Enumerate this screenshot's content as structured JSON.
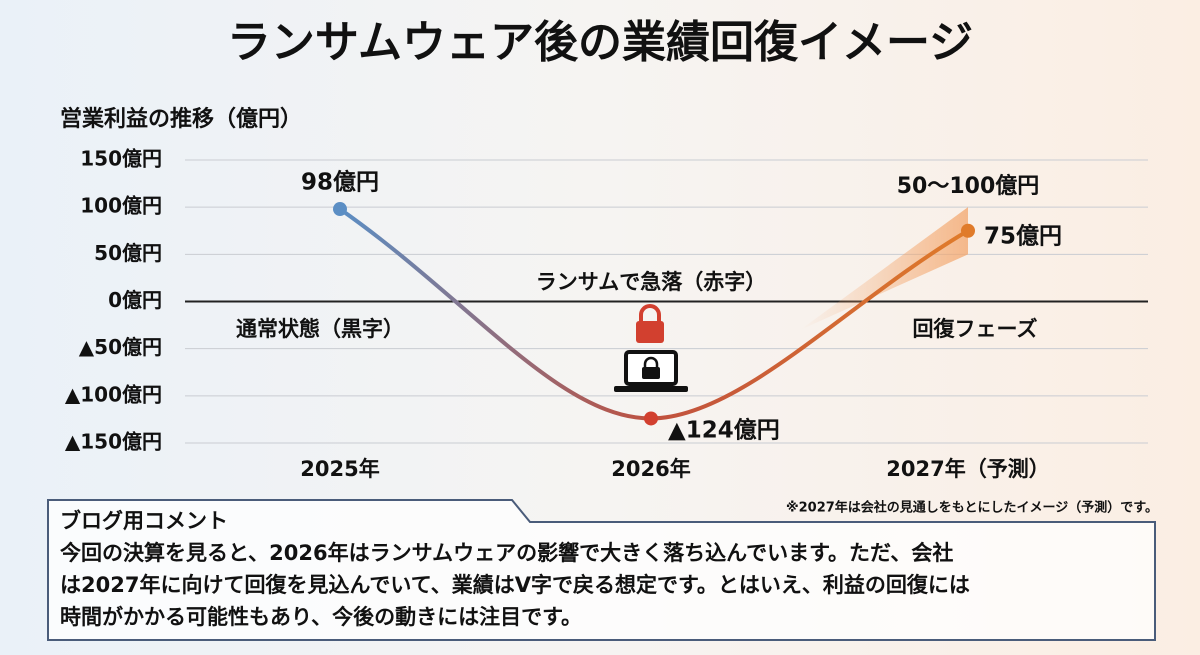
{
  "chart_data": {
    "type": "line",
    "title": "ランサムウェア後の業績回復イメージ",
    "y_title": "営業利益の推移（億円）",
    "categories": [
      "2025年",
      "2026年",
      "2027年（予測）"
    ],
    "values": [
      98,
      -124,
      75
    ],
    "value_labels": [
      "98億円",
      "▲124億円",
      "75億円"
    ],
    "colors": [
      "#5b8ec4",
      "#d2402f",
      "#e07b2a"
    ],
    "range": {
      "low": 50,
      "high": 100,
      "label": "50〜100億円",
      "color": "#f3a56b"
    },
    "ylim": [
      -150,
      150
    ],
    "yticks": [
      {
        "value": 150,
        "label": "150億円"
      },
      {
        "value": 100,
        "label": "100億円"
      },
      {
        "value": 50,
        "label": "50億円"
      },
      {
        "value": 0,
        "label": "0億円"
      },
      {
        "value": -50,
        "label": "▲50億円"
      },
      {
        "value": -100,
        "label": "▲100億円"
      },
      {
        "value": -150,
        "label": "▲150億円"
      }
    ],
    "grid": true,
    "annotations": [
      {
        "text": "ランサムで急落（赤字）",
        "color": "#c8372a"
      },
      {
        "text": "通常状態（黒字）",
        "color": "#111111"
      },
      {
        "text": "回復フェーズ",
        "color": "#e07b2a"
      }
    ],
    "note": "※2027年は会社の見通しをもとにしたイメージ（予測）です。",
    "comment": {
      "title": "ブログ用コメント",
      "lines": [
        "今回の決算を見ると、2026年はランサムウェアの影響で大きく落ち込んでいます。ただ、会社",
        "は2027年に向けて回復を見込んでいて、業績はV字で戻る想定です。とはいえ、利益の回復には",
        "時間がかかる可能性もあり、今後の動きには注目です。"
      ]
    }
  }
}
